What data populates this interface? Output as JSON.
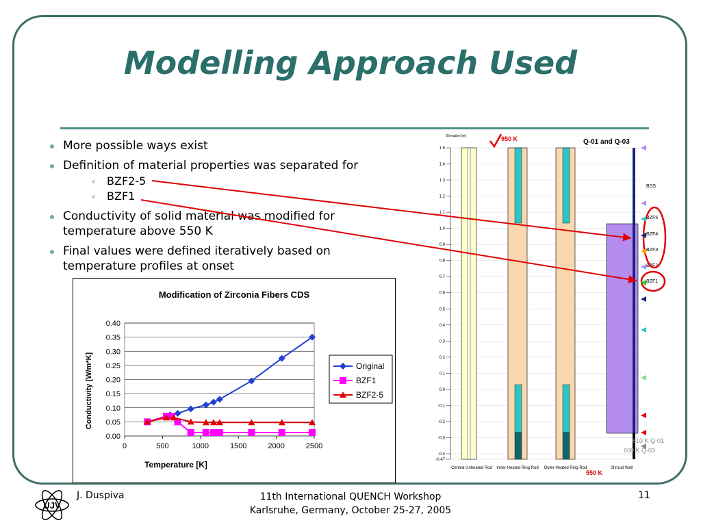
{
  "slide": {
    "title": "Modelling Approach Used",
    "bullets": [
      "More possible ways exist",
      "Definition of material properties was separated for",
      "Conductivity of solid material was modified for temperature above 550 K",
      "Final values were defined iteratively based on temperature profiles at onset"
    ],
    "sub_bullets": [
      "BZF2-5",
      "BZF1"
    ]
  },
  "footer": {
    "author": "J. Duspiva",
    "event_line1": "11th International QUENCH Workshop",
    "event_line2": "Karlsruhe, Germany, October 25-27, 2005",
    "page": "11",
    "logo_text": "ÚJV"
  },
  "diagram": {
    "header": "Q-01 and Q-03",
    "elevation_label": "Elevation [m]",
    "temp_top": "950 K",
    "temp_bottom": "550 K",
    "temp_610": "610 K Q-01",
    "temp_600": "600 K Q-03",
    "col_labels": [
      "Central Unheated Rod",
      "Inner Heated Ring Rod",
      "Outer Heated Ring Rod",
      "Shroud Wall"
    ],
    "shroud_labels": [
      "BSS",
      "BZF5",
      "BZF4",
      "BZF3",
      "BZF2",
      "BZF1"
    ],
    "elevations": [
      "1.5",
      "1.4",
      "1.3",
      "1.2",
      "1.1",
      "1.0",
      "0.9",
      "0.8",
      "0.7",
      "0.6",
      "0.5",
      "0.4",
      "0.3",
      "0.2",
      "0.1",
      "0.0",
      "-0.1",
      "-0.2",
      "-0.3",
      "-0.4",
      "-0.47"
    ],
    "accent_red": "#e00000",
    "accent_purple": "#b48cf0"
  },
  "chart_data": {
    "type": "line",
    "title": "Modification of Zirconia Fibers CDS",
    "xlabel": "Temperature [K]",
    "ylabel": "Conductivity [W/m*K]",
    "xlim": [
      0,
      2500
    ],
    "ylim": [
      0,
      0.4
    ],
    "xticks": [
      "0",
      "500",
      "1000",
      "1500",
      "2000",
      "2500"
    ],
    "yticks": [
      "0.00",
      "0.05",
      "0.10",
      "0.15",
      "0.20",
      "0.25",
      "0.30",
      "0.35",
      "0.40"
    ],
    "legend": "right",
    "grid": true,
    "series": [
      {
        "name": "Original",
        "color": "#1f3fd0",
        "marker": "diamond",
        "x": [
          300,
          550,
          600,
          700,
          873,
          1073,
          1173,
          1253,
          1673,
          2073,
          2473
        ],
        "y": [
          0.05,
          0.07,
          0.075,
          0.08,
          0.096,
          0.11,
          0.12,
          0.13,
          0.195,
          0.275,
          0.35
        ]
      },
      {
        "name": "BZF1",
        "color": "#ff00ff",
        "marker": "square",
        "x": [
          300,
          550,
          620,
          700,
          873,
          1073,
          1173,
          1253,
          1673,
          2073,
          2473
        ],
        "y": [
          0.05,
          0.07,
          0.07,
          0.05,
          0.012,
          0.012,
          0.012,
          0.012,
          0.012,
          0.012,
          0.012
        ]
      },
      {
        "name": "BZF2-5",
        "color": "#e00000",
        "marker": "triangle",
        "x": [
          300,
          550,
          650,
          873,
          1073,
          1173,
          1253,
          1673,
          2073,
          2473
        ],
        "y": [
          0.05,
          0.065,
          0.065,
          0.05,
          0.048,
          0.048,
          0.048,
          0.048,
          0.048,
          0.048
        ]
      }
    ]
  }
}
